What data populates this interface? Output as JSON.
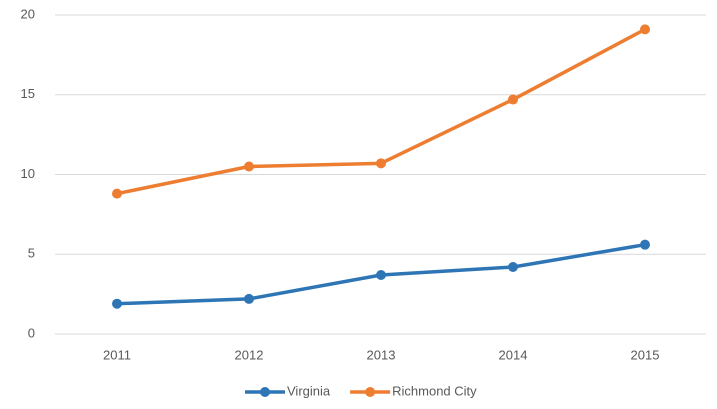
{
  "chart_data": {
    "type": "line",
    "categories": [
      "2011",
      "2012",
      "2013",
      "2014",
      "2015"
    ],
    "series": [
      {
        "name": "Virginia",
        "color": "#2e75b6",
        "values": [
          1.9,
          2.2,
          3.7,
          4.2,
          5.6
        ]
      },
      {
        "name": "Richmond City",
        "color": "#ed7d31",
        "values": [
          8.8,
          10.5,
          10.7,
          14.7,
          19.1
        ]
      }
    ],
    "ylim": [
      0,
      20
    ],
    "yticks": [
      0,
      5,
      10,
      15,
      20
    ],
    "grid": true,
    "legend": "bottom"
  }
}
